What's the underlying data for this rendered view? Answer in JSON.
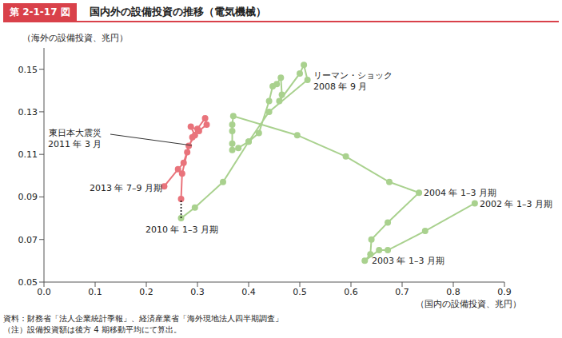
{
  "chart_data": {
    "type": "scatter",
    "figure_label": "第 2-1-17 図",
    "title": "国内外の設備投資の推移（電気機械）",
    "xlabel": "（国内の設備投資、兆円）",
    "ylabel": "（海外の設備投資、兆円）",
    "xlim": [
      0,
      0.9
    ],
    "xticks": [
      {
        "value": 0,
        "label": "0.0"
      },
      0.1,
      0.2,
      0.3,
      0.4,
      0.5,
      0.6,
      0.7,
      0.8,
      0.9
    ],
    "ylim": [
      0.05,
      0.16
    ],
    "yticks": [
      0.05,
      0.07,
      0.09,
      0.11,
      0.13,
      0.15
    ],
    "grid": false,
    "series": [
      {
        "color": "#a9d18e",
        "marker": "circle",
        "line_style": "solid",
        "x": [
          0.842,
          0.745,
          0.672,
          0.655,
          0.627,
          0.638,
          0.64,
          0.672,
          0.733,
          0.675,
          0.59,
          0.495,
          0.37,
          0.368,
          0.368,
          0.368,
          0.368,
          0.38,
          0.4,
          0.42,
          0.44,
          0.447,
          0.455,
          0.463,
          0.465,
          0.46,
          0.5,
          0.508,
          0.515,
          0.44,
          0.4,
          0.35,
          0.295,
          0.268
        ],
        "values": [
          0.087,
          0.074,
          0.065,
          0.065,
          0.06,
          0.063,
          0.07,
          0.078,
          0.092,
          0.097,
          0.109,
          0.119,
          0.128,
          0.124,
          0.121,
          0.115,
          0.112,
          0.113,
          0.116,
          0.12,
          0.135,
          0.142,
          0.143,
          0.146,
          0.138,
          0.135,
          0.148,
          0.152,
          0.145,
          0.13,
          0.116,
          0.097,
          0.085,
          0.08
        ]
      },
      {
        "color": "#e9737b",
        "marker": "circle",
        "line_style": "solid",
        "x": [
          0.268,
          0.27,
          0.28,
          0.29,
          0.3,
          0.315,
          0.318,
          0.303,
          0.287,
          0.295,
          0.283,
          0.273,
          0.262,
          0.235
        ],
        "values": [
          0.089,
          0.101,
          0.111,
          0.118,
          0.122,
          0.127,
          0.124,
          0.121,
          0.123,
          0.119,
          0.114,
          0.106,
          0.103,
          0.095
        ]
      },
      {
        "color": "#000000",
        "marker": "none",
        "line_style": "dotted",
        "x": [
          0.268,
          0.268
        ],
        "values": [
          0.08,
          0.089
        ]
      }
    ],
    "annotations": [
      {
        "text": "リーマン・ショック\n2008 年 9 月"
      },
      {
        "text": "東日本大震災\n2011 年 3 月"
      },
      {
        "text": "2013 年 7–9 月期"
      },
      {
        "text": "2010 年 1–3 月期"
      },
      {
        "text": "2004 年 1–3 月期"
      },
      {
        "text": "2002 年 1–3 月期"
      },
      {
        "text": "2003 年 1–3 月期"
      }
    ],
    "notes": [
      "資料：財務省「法人企業統計季報」、経済産業省「海外現地法人四半期調査」",
      "（注）設備投資額は後方 4 期移動平均にて算出。"
    ]
  }
}
